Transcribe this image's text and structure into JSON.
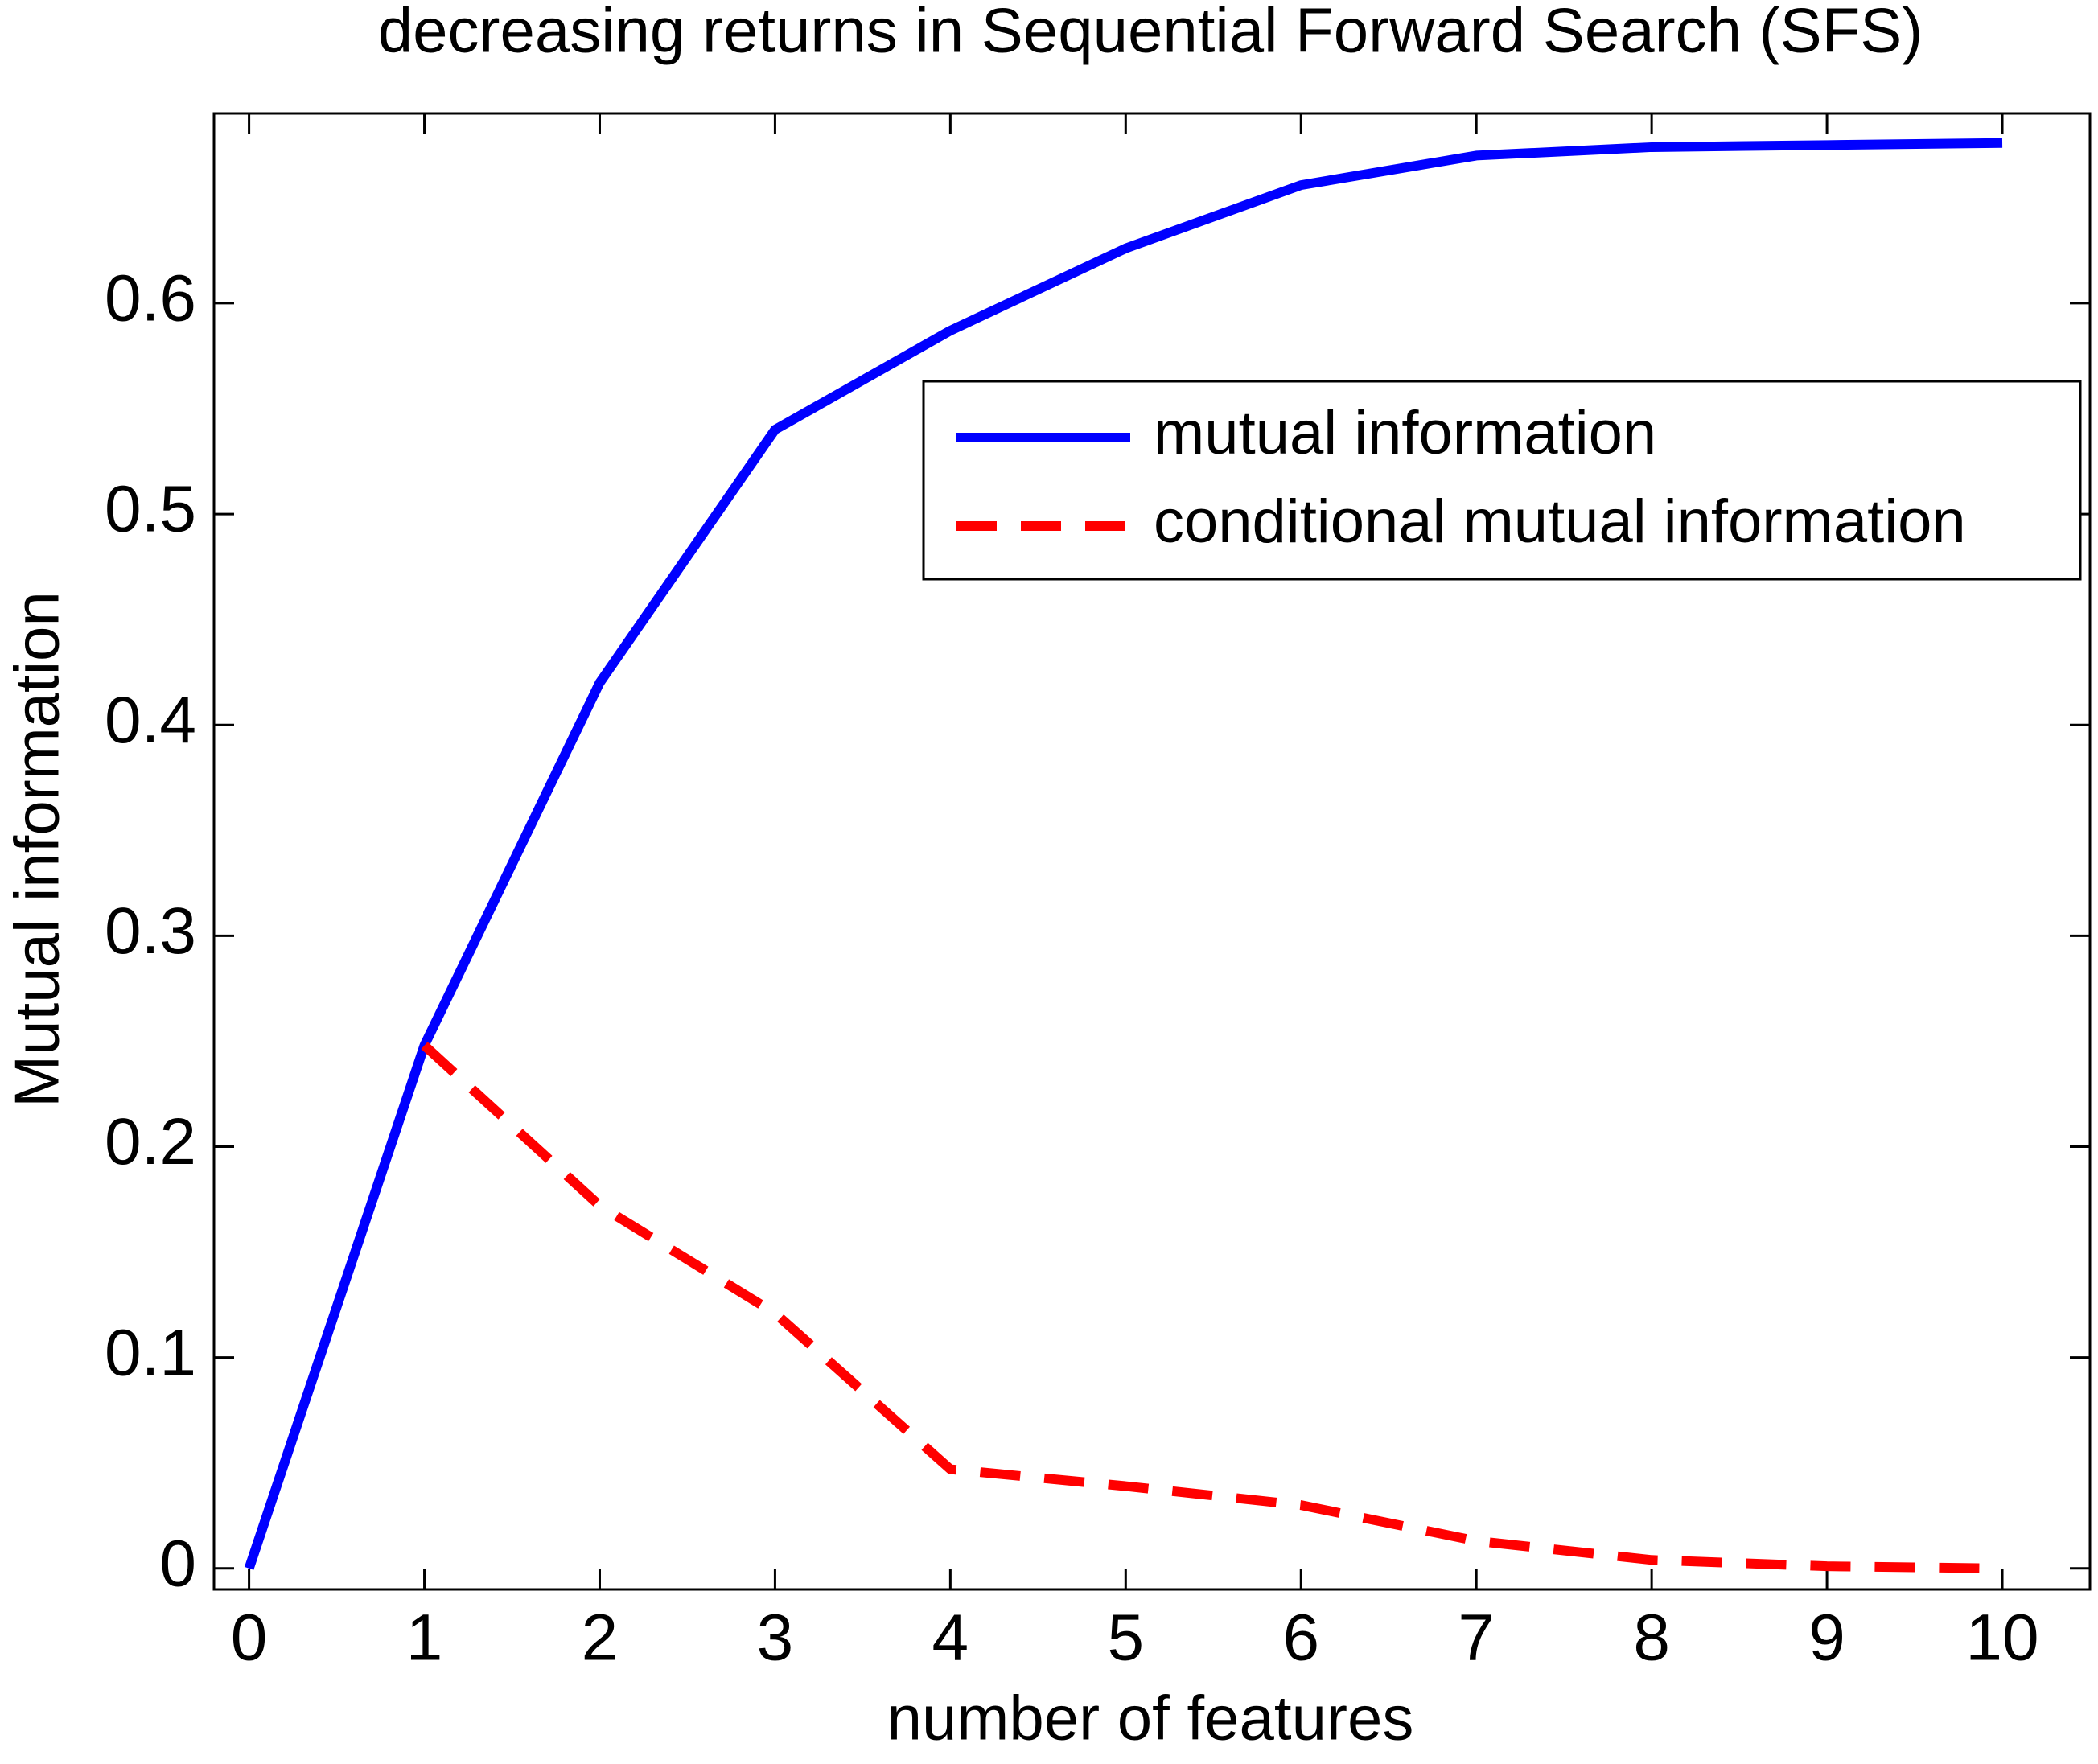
{
  "chart_data": {
    "type": "line",
    "title": "decreasing returns in Sequential Forward Search (SFS)",
    "x_label": "number of features",
    "y_label": "Mutual information",
    "x": [
      0,
      1,
      2,
      3,
      4,
      5,
      6,
      7,
      8,
      9,
      10
    ],
    "series": [
      {
        "name": "mutual information",
        "color": "#0000ff",
        "style": "solid",
        "values": [
          0,
          0.248,
          0.42,
          0.54,
          0.587,
          0.626,
          0.656,
          0.67,
          0.674,
          0.675,
          0.676
        ]
      },
      {
        "name": "conditional mutual information",
        "color": "#ff0000",
        "style": "dashed",
        "values": [
          null,
          0.248,
          0.172,
          0.121,
          0.047,
          0.039,
          0.03,
          0.013,
          0.004,
          0.001,
          0
        ]
      }
    ],
    "xlim": [
      -0.2,
      10.5
    ],
    "ylim": [
      -0.01,
      0.69
    ],
    "xticks": [
      0,
      1,
      2,
      3,
      4,
      5,
      6,
      7,
      8,
      9,
      10
    ],
    "yticks": [
      0,
      0.1,
      0.2,
      0.3,
      0.4,
      0.5,
      0.6
    ],
    "grid": false
  }
}
